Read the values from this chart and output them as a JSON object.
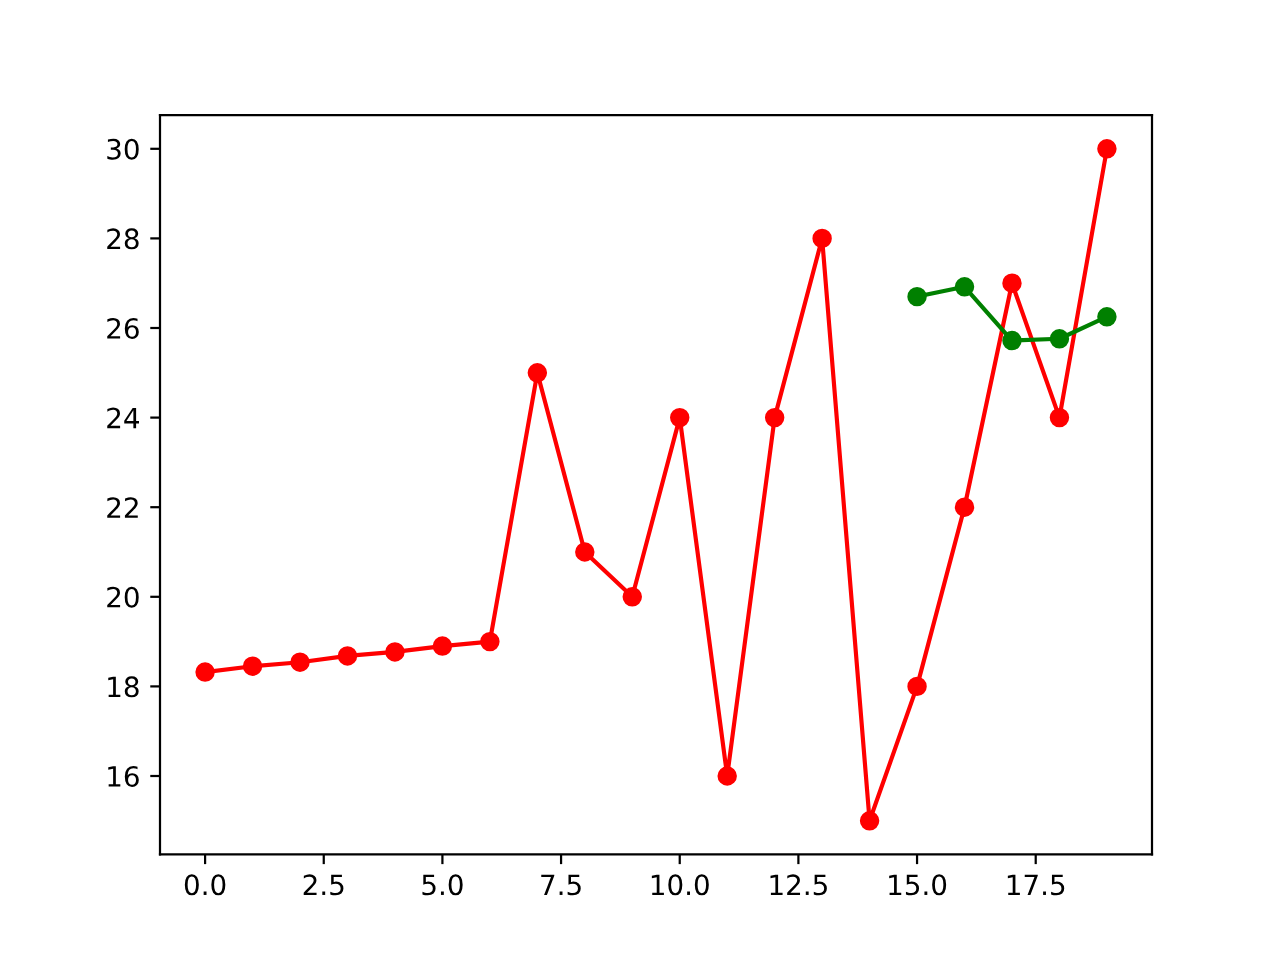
{
  "chart_data": {
    "type": "line",
    "marker": "circle",
    "line_style": "solid",
    "grid": false,
    "series": [
      {
        "color": "#ff0000",
        "x": [
          0,
          1,
          2,
          3,
          4,
          5,
          6,
          7,
          8,
          9,
          10,
          11,
          12,
          13,
          14,
          15,
          16,
          17,
          18,
          19
        ],
        "values": [
          18.32,
          18.45,
          18.54,
          18.68,
          18.77,
          18.9,
          19.0,
          25,
          21,
          20,
          24,
          16,
          24,
          28,
          15,
          18,
          22,
          27,
          24,
          30
        ]
      },
      {
        "color": "#008000",
        "x": [
          15,
          16,
          17,
          18,
          19
        ],
        "values": [
          26.7,
          26.92,
          25.72,
          25.76,
          26.25
        ]
      }
    ],
    "xlim": [
      -0.95,
      19.95
    ],
    "xticks": [
      {
        "value": 0,
        "label": "0.0"
      },
      {
        "value": 2.5,
        "label": "2.5"
      },
      {
        "value": 5,
        "label": "5.0"
      },
      {
        "value": 7.5,
        "label": "7.5"
      },
      {
        "value": 10,
        "label": "10.0"
      },
      {
        "value": 12.5,
        "label": "12.5"
      },
      {
        "value": 15,
        "label": "15.0"
      },
      {
        "value": 17.5,
        "label": "17.5"
      }
    ],
    "ylim": [
      14.25,
      30.75
    ],
    "yticks": [
      16,
      18,
      20,
      22,
      24,
      26,
      28,
      30
    ]
  }
}
